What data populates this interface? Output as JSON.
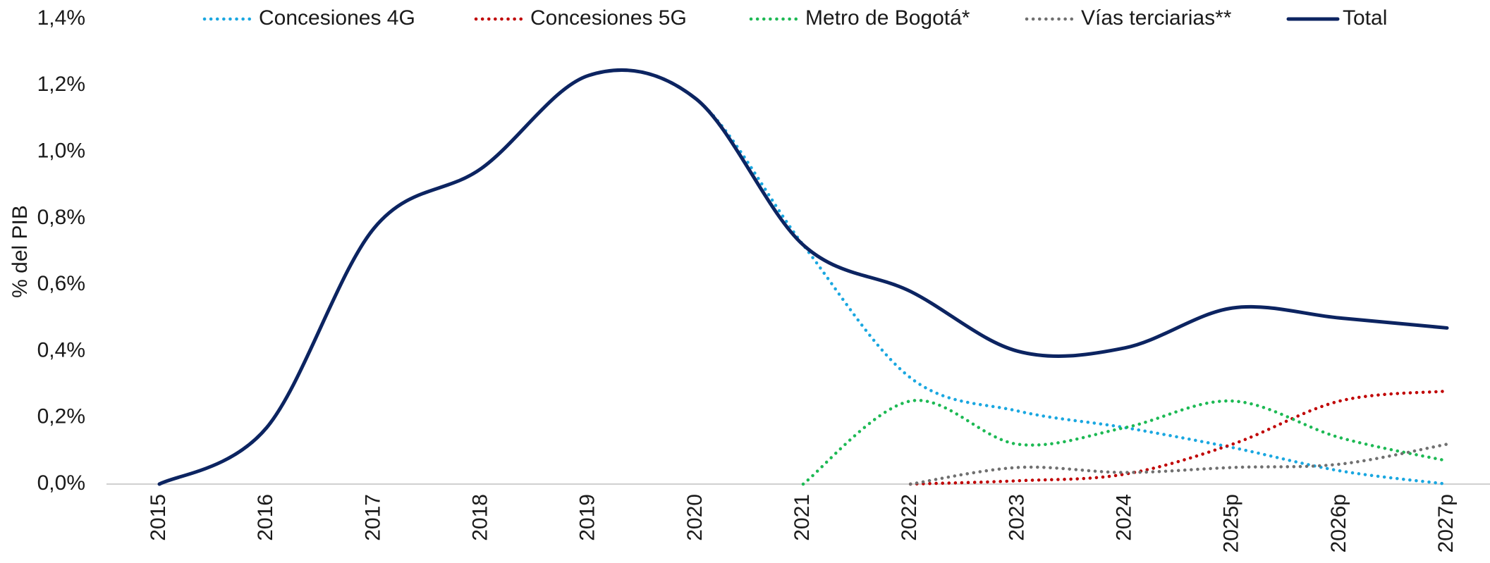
{
  "chart_data": {
    "type": "line",
    "y_label": "% del PIB",
    "categories": [
      "2015",
      "2016",
      "2017",
      "2018",
      "2019",
      "2020",
      "2021",
      "2022",
      "2023",
      "2024",
      "2025p",
      "2026p",
      "2027p"
    ],
    "series": [
      {
        "name": "Concesiones 4G",
        "color": "#1aa7e0",
        "style": "dotted",
        "values": [
          0,
          0.17,
          0.77,
          0.95,
          1.23,
          1.16,
          0.72,
          0.32,
          0.22,
          0.17,
          0.11,
          0.04,
          0.0
        ]
      },
      {
        "name": "Concesiones 5G",
        "color": "#c00000",
        "style": "dotted",
        "values": [
          null,
          null,
          null,
          null,
          null,
          null,
          null,
          0.0,
          0.01,
          0.03,
          0.12,
          0.25,
          0.28
        ]
      },
      {
        "name": "Metro de Bogotá*",
        "color": "#1db954",
        "style": "dotted",
        "values": [
          null,
          null,
          null,
          null,
          null,
          null,
          0.0,
          0.25,
          0.12,
          0.17,
          0.25,
          0.14,
          0.07
        ]
      },
      {
        "name": "Vías terciarias**",
        "color": "#707070",
        "style": "dotted",
        "values": [
          null,
          null,
          null,
          null,
          null,
          null,
          null,
          0.0,
          0.05,
          0.035,
          0.05,
          0.06,
          0.12
        ]
      },
      {
        "name": "Total",
        "color": "#0c2461",
        "style": "solid",
        "values": [
          0,
          0.17,
          0.77,
          0.95,
          1.23,
          1.16,
          0.72,
          0.58,
          0.4,
          0.41,
          0.53,
          0.5,
          0.47
        ]
      }
    ],
    "ylim": [
      0,
      1.4
    ],
    "yticks": [
      {
        "value": 0,
        "label": "0,0%"
      },
      {
        "value": 0.2,
        "label": "0,2%"
      },
      {
        "value": 0.4,
        "label": "0,4%"
      },
      {
        "value": 0.6,
        "label": "0,6%"
      },
      {
        "value": 0.8,
        "label": "0,8%"
      },
      {
        "value": 1.0,
        "label": "1,0%"
      },
      {
        "value": 1.2,
        "label": "1,2%"
      },
      {
        "value": 1.4,
        "label": "1,4%"
      }
    ],
    "legend": "top"
  }
}
